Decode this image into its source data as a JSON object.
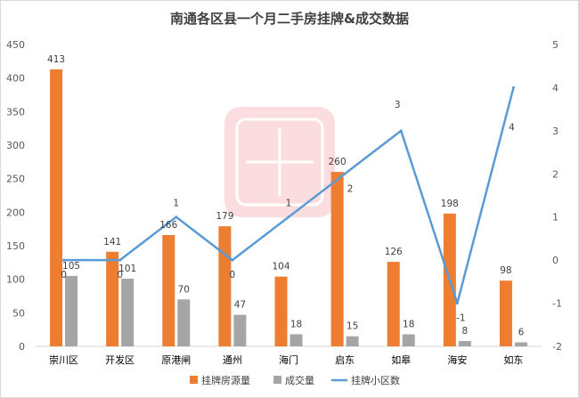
{
  "chart_data": {
    "type": "bar",
    "title": "南通各区县一个月二手房挂牌&成交数据",
    "categories": [
      "崇川区",
      "开发区",
      "原港闸",
      "通州",
      "海门",
      "启东",
      "如皋",
      "海安",
      "如东"
    ],
    "series": [
      {
        "name": "挂牌房源量",
        "type": "bar",
        "axis": "left",
        "color": "#ED7D31",
        "values": [
          413,
          141,
          166,
          179,
          104,
          260,
          126,
          198,
          98
        ]
      },
      {
        "name": "成交量",
        "type": "bar",
        "axis": "left",
        "color": "#A5A5A5",
        "values": [
          105,
          101,
          70,
          47,
          18,
          15,
          18,
          8,
          6
        ]
      },
      {
        "name": "挂牌小区数",
        "type": "line",
        "axis": "right",
        "color": "#5B9BD5",
        "values": [
          0,
          0,
          1,
          0,
          1,
          2,
          3,
          -1,
          4
        ]
      }
    ],
    "ylim_left": [
      0,
      450
    ],
    "yticks_left": [
      0,
      50,
      100,
      150,
      200,
      250,
      300,
      350,
      400,
      450
    ],
    "ylim_right": [
      -2,
      5
    ],
    "yticks_right": [
      -2,
      -1,
      0,
      1,
      2,
      3,
      4,
      5
    ],
    "grid": false,
    "legend_position": "bottom"
  }
}
